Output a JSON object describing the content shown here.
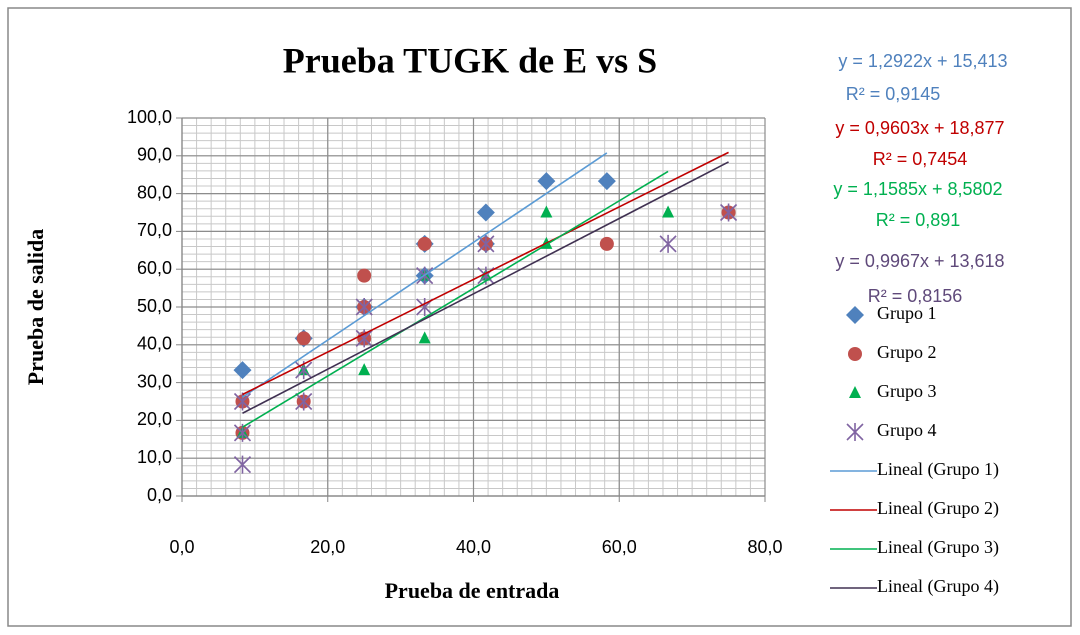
{
  "chart_data": {
    "type": "scatter",
    "title": "Prueba TUGK de E vs S",
    "x_label": "Prueba de entrada",
    "y_label": "Prueba de salida",
    "xlim": [
      0,
      80
    ],
    "ylim": [
      0,
      100
    ],
    "xticks": [
      {
        "value": 0,
        "label": "0,0"
      },
      {
        "value": 20,
        "label": "20,0"
      },
      {
        "value": 40,
        "label": "40,0"
      },
      {
        "value": 60,
        "label": "60,0"
      },
      {
        "value": 80,
        "label": "80,0"
      }
    ],
    "yticks": [
      {
        "value": 0,
        "label": "0,0"
      },
      {
        "value": 10,
        "label": "10,0"
      },
      {
        "value": 20,
        "label": "20,0"
      },
      {
        "value": 30,
        "label": "30,0"
      },
      {
        "value": 40,
        "label": "40,0"
      },
      {
        "value": 50,
        "label": "50,0"
      },
      {
        "value": 60,
        "label": "60,0"
      },
      {
        "value": 70,
        "label": "70,0"
      },
      {
        "value": 80,
        "label": "80,0"
      },
      {
        "value": 90,
        "label": "90,0"
      },
      {
        "value": 100,
        "label": "100,0"
      }
    ],
    "grid": true,
    "minor_grid": true,
    "legend": "right",
    "series": [
      {
        "name": "Grupo 1",
        "color": "#4f81bd",
        "marker": "diamond",
        "x": [
          8.3,
          16.7,
          25,
          33.3,
          33.3,
          41.7,
          41.7,
          50,
          58.3
        ],
        "values": [
          33.3,
          41.7,
          50,
          66.7,
          58.3,
          75,
          66.7,
          83.3,
          83.3
        ],
        "trendline": {
          "name": "Lineal (Grupo 1)",
          "color": "#5b9bd5",
          "slope": 1.2922,
          "intercept": 15.413,
          "equation": "y = 1,2922x + 15,413",
          "r2": "R² = 0,9145",
          "label_color": "#4f81bd"
        }
      },
      {
        "name": "Grupo 2",
        "color": "#c0504d",
        "marker": "circle",
        "x": [
          8.3,
          8.3,
          16.7,
          16.7,
          25,
          25,
          25,
          33.3,
          41.7,
          58.3,
          75
        ],
        "values": [
          25,
          16.7,
          41.7,
          25,
          58.3,
          50,
          41.7,
          66.7,
          66.7,
          66.7,
          75
        ],
        "trendline": {
          "name": "Lineal (Grupo 2)",
          "color": "#c00000",
          "slope": 0.9603,
          "intercept": 18.877,
          "equation": "y = 0,9603x + 18,877",
          "r2": "R² = 0,7454",
          "label_color": "#c00000"
        }
      },
      {
        "name": "Grupo 3",
        "color": "#00b050",
        "marker": "triangle",
        "x": [
          8.3,
          16.7,
          25,
          33.3,
          33.3,
          41.7,
          50,
          50,
          66.7
        ],
        "values": [
          16.7,
          33.3,
          33.3,
          41.7,
          58.3,
          58.3,
          75,
          66.7,
          75
        ],
        "trendline": {
          "name": "Lineal (Grupo 3)",
          "color": "#00b050",
          "slope": 1.1585,
          "intercept": 8.5802,
          "equation": "y = 1,1585x + 8,5802",
          "r2": "R² = 0,891",
          "label_color": "#00b050"
        }
      },
      {
        "name": "Grupo 4",
        "color": "#8064a2",
        "marker": "star",
        "x": [
          8.3,
          8.3,
          8.3,
          16.7,
          16.7,
          25,
          25,
          33.3,
          33.3,
          41.7,
          41.7,
          66.7,
          75
        ],
        "values": [
          8.3,
          16.7,
          25,
          25,
          33.3,
          50,
          41.7,
          50,
          58.3,
          58.3,
          66.7,
          66.7,
          75
        ],
        "trendline": {
          "name": "Lineal (Grupo 4)",
          "color": "#403152",
          "slope": 0.9967,
          "intercept": 13.618,
          "equation": "y = 0,9967x + 13,618",
          "r2": "R² = 0,8156",
          "label_color": "#5f497a"
        }
      }
    ]
  }
}
